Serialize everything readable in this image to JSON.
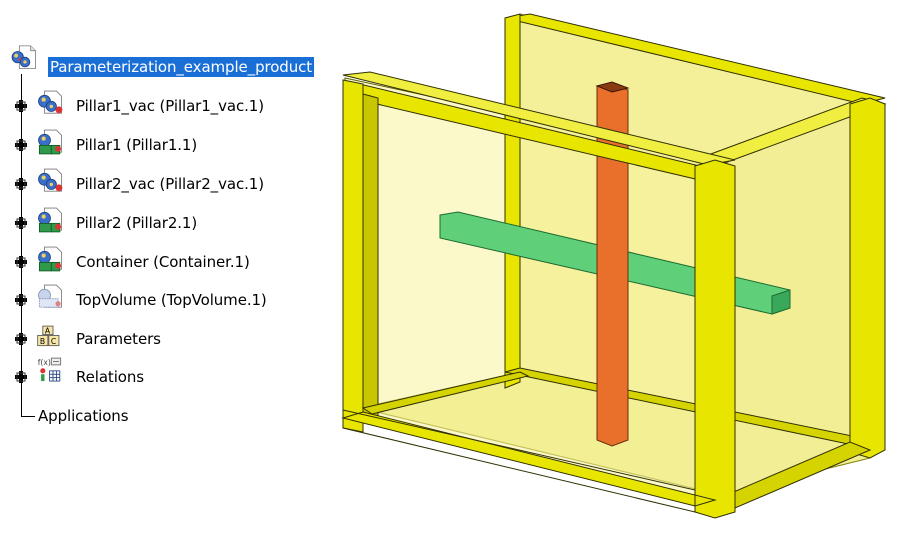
{
  "tree": {
    "root": {
      "label": "Parameterization_example_product",
      "icon": "product-icon"
    },
    "items": [
      {
        "label": "Pillar1_vac (Pillar1_vac.1)",
        "icon": "product-instance-icon",
        "expander": "plus-expander"
      },
      {
        "label": "Pillar1 (Pillar1.1)",
        "icon": "part-instance-icon",
        "expander": "plus-expander"
      },
      {
        "label": "Pillar2_vac (Pillar2_vac.1)",
        "icon": "product-instance-icon",
        "expander": "plus-expander"
      },
      {
        "label": "Pillar2 (Pillar2.1)",
        "icon": "part-instance-icon",
        "expander": "plus-expander"
      },
      {
        "label": "Container (Container.1)",
        "icon": "part-instance-icon",
        "expander": "plus-expander"
      },
      {
        "label": "TopVolume (TopVolume.1)",
        "icon": "volume-instance-icon",
        "expander": "plus-expander"
      },
      {
        "label": "Parameters",
        "icon": "parameters-icon",
        "expander": "plus-expander"
      },
      {
        "label": "Relations",
        "icon": "relations-icon",
        "expander": "plus-expander"
      },
      {
        "label": "Applications",
        "icon": "none",
        "expander": "none"
      }
    ]
  },
  "colors": {
    "selection": "#1a6fd6",
    "frame_yellow": "#e8e600",
    "glass_yellow": "#f4f09a",
    "pillar_orange": "#e8702a",
    "beam_green": "#5fcf7a"
  }
}
